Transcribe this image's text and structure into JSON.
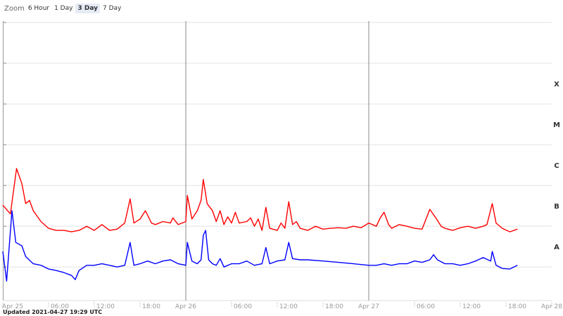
{
  "zoom": {
    "label": "Zoom",
    "options": [
      "6 Hour",
      "1 Day",
      "3 Day",
      "7 Day"
    ],
    "selected": 2
  },
  "chart_data": {
    "type": "line",
    "log_y": true,
    "xlim": [
      0,
      72
    ],
    "xticks": [
      {
        "value": 0,
        "label": "Apr 25"
      },
      {
        "value": 6,
        "label": "06:00"
      },
      {
        "value": 12,
        "label": "12:00"
      },
      {
        "value": 18,
        "label": "18:00"
      },
      {
        "value": 24,
        "label": "Apr 26"
      },
      {
        "value": 30,
        "label": "06:00"
      },
      {
        "value": 36,
        "label": "12:00"
      },
      {
        "value": 42,
        "label": "18:00"
      },
      {
        "value": 48,
        "label": "Apr 27"
      },
      {
        "value": 54,
        "label": "06:00"
      },
      {
        "value": 60,
        "label": "12:00"
      },
      {
        "value": 66,
        "label": "18:00"
      },
      {
        "value": 72,
        "label": "Apr 28"
      }
    ],
    "ylim": [
      1.5e-09,
      0.01
    ],
    "yticks": [
      1e-08,
      1e-07,
      1e-06,
      1e-05,
      0.0001,
      0.001,
      0.01
    ],
    "grid": true,
    "flare_classes": [
      {
        "label": "A",
        "min": 1e-08
      },
      {
        "label": "B",
        "min": 1e-07
      },
      {
        "label": "C",
        "min": 1e-06
      },
      {
        "label": "M",
        "min": 1e-05
      },
      {
        "label": "X",
        "min": 0.0001
      }
    ],
    "series": [
      {
        "color": "#ff0000",
        "x": [
          0,
          1,
          1.8,
          2.5,
          3,
          3.5,
          4,
          5,
          6,
          7,
          8,
          9,
          10,
          11,
          12,
          13,
          14,
          15,
          16,
          16.7,
          17.2,
          18,
          18.7,
          19.5,
          20,
          21,
          22,
          22.3,
          23,
          24,
          24.2,
          24.8,
          25.5,
          26,
          26.3,
          26.8,
          27.5,
          28,
          28.5,
          29,
          29.5,
          30,
          30.5,
          31,
          32,
          32.5,
          33,
          33.5,
          34,
          34.5,
          35,
          36,
          36.5,
          37,
          37.5,
          38,
          38.5,
          39,
          40,
          41,
          42,
          43,
          44,
          45,
          46,
          47,
          48,
          49,
          49.5,
          50,
          50.6,
          51,
          52,
          53,
          54,
          55,
          56,
          56.8,
          57.5,
          58,
          59,
          60,
          61,
          62,
          63,
          63.5,
          64.2,
          64.7,
          65.5,
          66.5,
          67.5
        ],
        "values": [
          3.3e-07,
          2e-07,
          2.6e-06,
          1.1e-06,
          3.6e-07,
          4.3e-07,
          2.4e-07,
          1.3e-07,
          8.9e-08,
          7.9e-08,
          7.9e-08,
          7.3e-08,
          7.9e-08,
          1e-07,
          7.9e-08,
          1.1e-07,
          7.9e-08,
          8.5e-08,
          1.2e-07,
          4.7e-07,
          1.2e-07,
          1.5e-07,
          2.4e-07,
          1.2e-07,
          1.1e-07,
          1.3e-07,
          1.2e-07,
          1.6e-07,
          1.1e-07,
          1.3e-07,
          5.7e-07,
          1.5e-07,
          2.4e-07,
          4.3e-07,
          1.4e-06,
          3.6e-07,
          2.4e-07,
          1.3e-07,
          2.4e-07,
          1.1e-07,
          1.7e-07,
          1.2e-07,
          2.2e-07,
          1.2e-07,
          1.3e-07,
          1.6e-07,
          1e-07,
          1.5e-07,
          7.9e-08,
          2.9e-07,
          8.9e-08,
          7.9e-08,
          1.2e-07,
          8.9e-08,
          4e-07,
          1.1e-07,
          1.3e-07,
          8.9e-08,
          7.9e-08,
          1e-07,
          8.5e-08,
          8.9e-08,
          9.2e-08,
          8.9e-08,
          1e-07,
          9.2e-08,
          1.2e-07,
          1e-07,
          1.6e-07,
          2.2e-07,
          1.1e-07,
          8.9e-08,
          1.1e-07,
          1e-07,
          8.9e-08,
          8.5e-08,
          2.6e-07,
          1.6e-07,
          1e-07,
          8.9e-08,
          7.9e-08,
          9.2e-08,
          1e-07,
          8.9e-08,
          1e-07,
          1.1e-07,
          3.6e-07,
          1.2e-07,
          8.9e-08,
          7.3e-08,
          8.5e-08
        ]
      },
      {
        "color": "#0000ff",
        "x": [
          0,
          0.5,
          1.2,
          1.7,
          2.5,
          3,
          4,
          5,
          6,
          7,
          8,
          9,
          9.5,
          10,
          11,
          12,
          13,
          14,
          15,
          16,
          16.7,
          17.2,
          18,
          19,
          20,
          21,
          22,
          23,
          24,
          24.2,
          24.8,
          25.5,
          26,
          26.3,
          26.6,
          27,
          27.5,
          28,
          28.5,
          29,
          30,
          31,
          32,
          33,
          34,
          34.5,
          35,
          36,
          37,
          37.5,
          38,
          39,
          40,
          42,
          44,
          46,
          48,
          49,
          50,
          51,
          52,
          53,
          54,
          55,
          56,
          56.5,
          57,
          58,
          59,
          60,
          61,
          62,
          63,
          64,
          64.2,
          64.7,
          65.5,
          66.5,
          67.5
        ],
        "values": [
          2.4e-08,
          4.5e-09,
          2.4e-07,
          4e-08,
          3.3e-08,
          1.8e-08,
          1.2e-08,
          1.1e-08,
          8.9e-09,
          8.2e-09,
          7.3e-09,
          6.2e-09,
          4.9e-09,
          8.2e-09,
          1.1e-08,
          1.1e-08,
          1.2e-08,
          1.1e-08,
          1e-08,
          1.1e-08,
          4e-08,
          1.1e-08,
          1.2e-08,
          1.4e-08,
          1.2e-08,
          1.4e-08,
          1.5e-08,
          1.2e-08,
          1.1e-08,
          4e-08,
          1.4e-08,
          1.2e-08,
          1.5e-08,
          6e-08,
          7.9e-08,
          1.5e-08,
          1.2e-08,
          1.1e-08,
          1.6e-08,
          1e-08,
          1.2e-08,
          1.2e-08,
          1.4e-08,
          1.1e-08,
          1.2e-08,
          3e-08,
          1.2e-08,
          1.4e-08,
          1.5e-08,
          4e-08,
          1.6e-08,
          1.5e-08,
          1.5e-08,
          1.4e-08,
          1.3e-08,
          1.2e-08,
          1.1e-08,
          1.1e-08,
          1.2e-08,
          1.1e-08,
          1.2e-08,
          1.2e-08,
          1.4e-08,
          1.3e-08,
          1.5e-08,
          2e-08,
          1.5e-08,
          1.2e-08,
          1.2e-08,
          1.1e-08,
          1.2e-08,
          1.4e-08,
          1.7e-08,
          1.4e-08,
          2.4e-08,
          1.1e-08,
          9.2e-09,
          8.9e-09,
          1.1e-08
        ]
      }
    ]
  },
  "footer": "Updated 2021-04-27 19:29 UTC"
}
